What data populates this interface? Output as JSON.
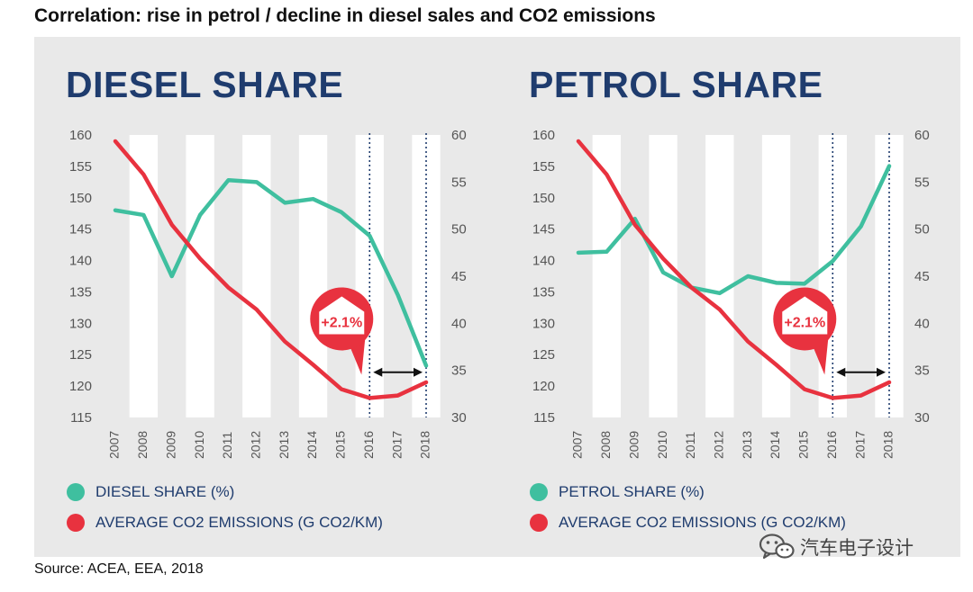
{
  "figure_title": "Correlation: rise in petrol / decline in diesel sales and CO2 emissions",
  "source": "Source: ACEA, EEA, 2018",
  "watermark": {
    "text": "汽车电子设计",
    "icon": "wechat-icon"
  },
  "colors": {
    "share": "#3fbf9f",
    "co2": "#e8323f",
    "title": "#1f3c6e",
    "stripe": "#ffffff",
    "panel": "#e9e9e9",
    "axis": "#555555",
    "dotted": "#1f3c6e"
  },
  "chart_data": [
    {
      "type": "line",
      "title": "DIESEL SHARE",
      "x": [
        "2007",
        "2008",
        "2009",
        "2010",
        "2011",
        "2012",
        "2013",
        "2014",
        "2015",
        "2016",
        "2017",
        "2018"
      ],
      "series": [
        {
          "name": "DIESEL SHARE (%)",
          "axis": "right",
          "values": [
            52.0,
            51.5,
            45.0,
            51.5,
            55.2,
            55.0,
            52.8,
            53.2,
            51.8,
            49.3,
            43.0,
            35.5
          ]
        },
        {
          "name": "AVERAGE CO2 EMISSIONS (G CO2/KM)",
          "axis": "left",
          "values": [
            159.0,
            153.7,
            145.7,
            140.3,
            135.7,
            132.2,
            127.1,
            123.4,
            119.5,
            118.1,
            118.5,
            120.6
          ]
        }
      ],
      "y_left": {
        "range": [
          115,
          160
        ],
        "ticks": [
          "160",
          "155",
          "150",
          "145",
          "140",
          "135",
          "130",
          "125",
          "120",
          "115"
        ]
      },
      "y_right": {
        "range": [
          30,
          60
        ],
        "ticks": [
          "60",
          "55",
          "50",
          "45",
          "40",
          "35",
          "30"
        ]
      },
      "highlight": {
        "from": "2016",
        "to": "2018",
        "label": "+2.1%"
      }
    },
    {
      "type": "line",
      "title": "PETROL SHARE",
      "x": [
        "2007",
        "2008",
        "2009",
        "2010",
        "2011",
        "2012",
        "2013",
        "2014",
        "2015",
        "2016",
        "2017",
        "2018"
      ],
      "series": [
        {
          "name": "PETROL SHARE (%)",
          "axis": "right",
          "values": [
            47.5,
            47.6,
            51.1,
            45.4,
            43.8,
            43.2,
            45.0,
            44.3,
            44.2,
            46.6,
            50.3,
            56.7
          ]
        },
        {
          "name": "AVERAGE CO2 EMISSIONS (G CO2/KM)",
          "axis": "left",
          "values": [
            159.0,
            153.7,
            145.7,
            140.3,
            135.7,
            132.2,
            127.1,
            123.4,
            119.5,
            118.1,
            118.5,
            120.6
          ]
        }
      ],
      "y_left": {
        "range": [
          115,
          160
        ],
        "ticks": [
          "160",
          "155",
          "150",
          "145",
          "140",
          "135",
          "130",
          "125",
          "120",
          "115"
        ]
      },
      "y_right": {
        "range": [
          30,
          60
        ],
        "ticks": [
          "60",
          "55",
          "50",
          "45",
          "40",
          "35",
          "30"
        ]
      },
      "highlight": {
        "from": "2016",
        "to": "2018",
        "label": "+2.1%"
      }
    }
  ],
  "legends": [
    [
      {
        "label": "DIESEL SHARE (%)",
        "series": "share"
      },
      {
        "label": "AVERAGE CO2 EMISSIONS (G CO2/KM)",
        "series": "co2"
      }
    ],
    [
      {
        "label": "PETROL SHARE (%)",
        "series": "share"
      },
      {
        "label": "AVERAGE CO2 EMISSIONS (G CO2/KM)",
        "series": "co2"
      }
    ]
  ]
}
